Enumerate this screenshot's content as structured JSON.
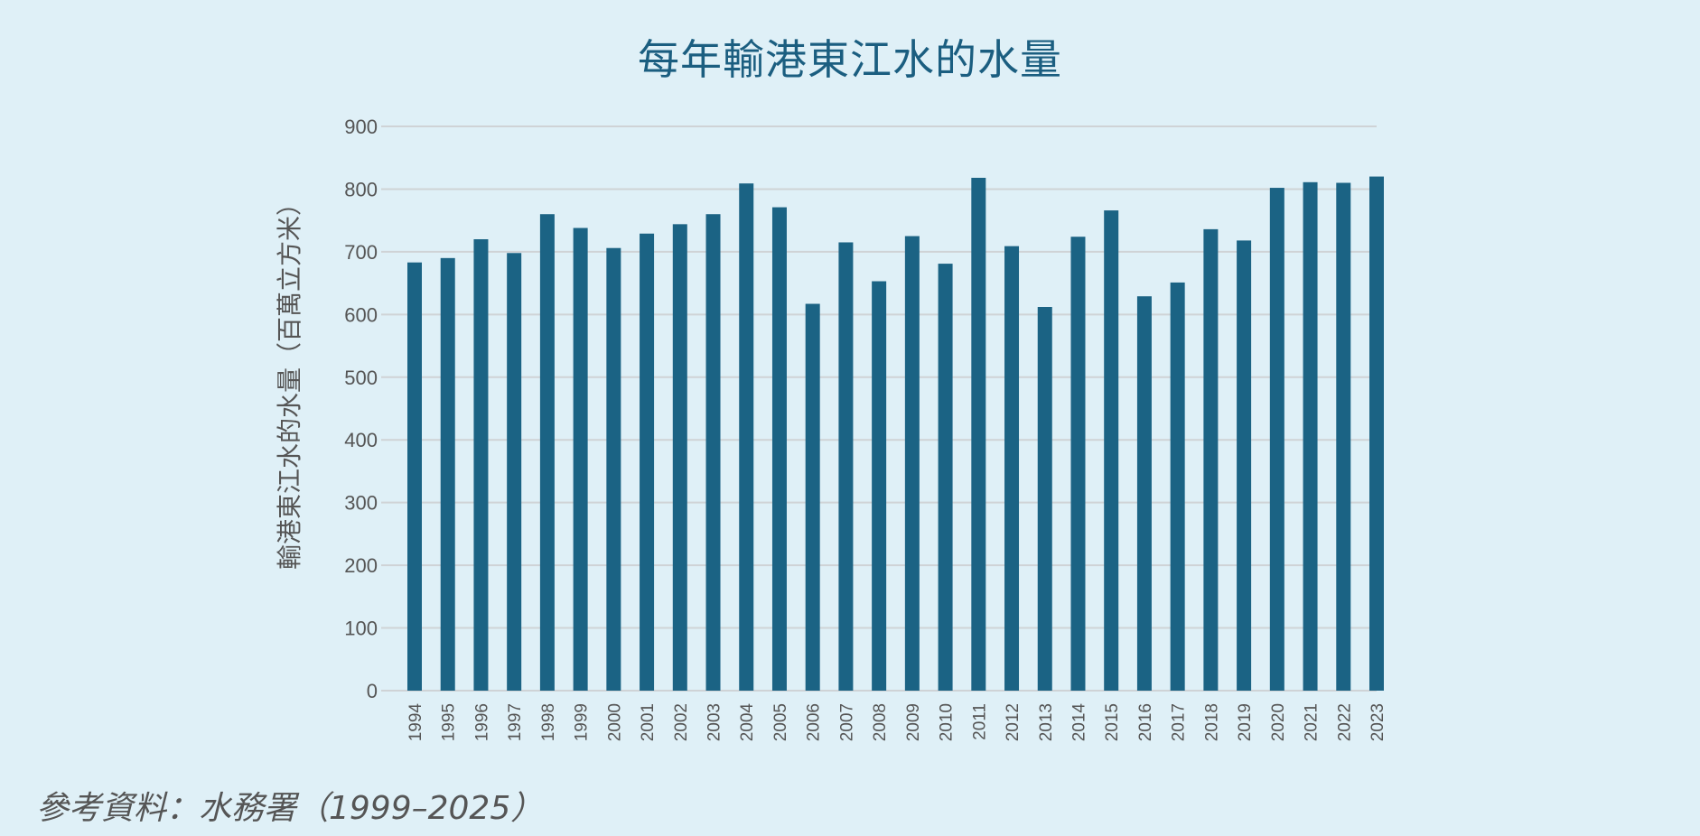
{
  "chart_data": {
    "type": "bar",
    "title": "每年輸港東江水的水量",
    "xlabel": "",
    "ylabel": "輸港東江水的水量（百萬立方米）",
    "ylim": [
      0,
      900
    ],
    "yticks": [
      0,
      100,
      200,
      300,
      400,
      500,
      600,
      700,
      800,
      900
    ],
    "grid": true,
    "categories": [
      "1994",
      "1995",
      "1996",
      "1997",
      "1998",
      "1999",
      "2000",
      "2001",
      "2002",
      "2003",
      "2004",
      "2005",
      "2006",
      "2007",
      "2008",
      "2009",
      "2010",
      "2011",
      "2012",
      "2013",
      "2014",
      "2015",
      "2016",
      "2017",
      "2018",
      "2019",
      "2020",
      "2021",
      "2022",
      "2023"
    ],
    "values": [
      683,
      690,
      720,
      698,
      760,
      738,
      706,
      729,
      744,
      760,
      809,
      771,
      617,
      715,
      653,
      725,
      681,
      818,
      709,
      612,
      724,
      766,
      629,
      651,
      736,
      718,
      802,
      811,
      810,
      820
    ],
    "source": "參考資料：水務署（1999–2025）",
    "colors": {
      "bar": "#1b6384",
      "grid": "#cfd3d6",
      "axis_text": "#555555",
      "title": "#1b5e80",
      "background": "#dff0f7"
    }
  }
}
